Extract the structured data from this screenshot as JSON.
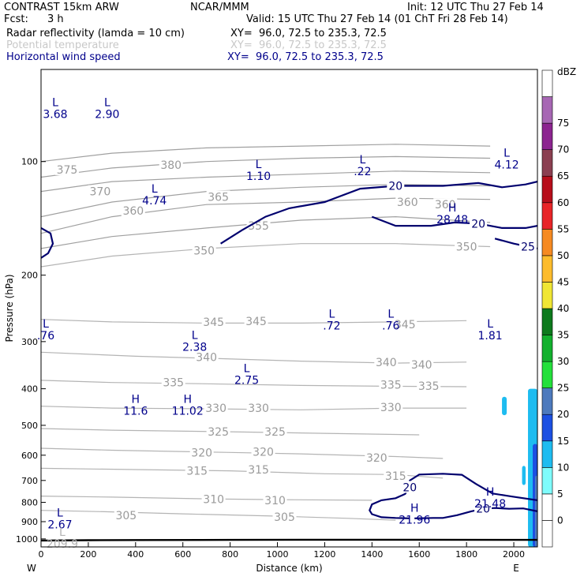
{
  "header": {
    "model": "CONTRAST 15km ARW",
    "org": "NCAR/MMM",
    "init": "Init: 12 UTC Thu 27 Feb 14",
    "fcst_label": "Fcst:",
    "fcst_value": "3 h",
    "valid": "Valid: 15 UTC Thu 27 Feb 14 (01 ChT Fri 28 Feb 14)",
    "fields": [
      {
        "name": "Radar reflectivity (lamda = 10 cm)",
        "xy": "XY=  96.0, 72.5 to 235.3, 72.5"
      },
      {
        "name": "Potential temperature",
        "xy": "XY=  96.0, 72.5 to 235.3, 72.5"
      },
      {
        "name": "Horizontal wind speed",
        "xy": "XY=  96.0, 72.5 to 235.3, 72.5"
      }
    ]
  },
  "colors": {
    "theta": "#b4b4b4",
    "theta_dense": "#a0a0a0",
    "wind": "#00006e",
    "ground": "#000000",
    "text_blue": "#00008b"
  },
  "chart_data": {
    "type": "contour cross-section",
    "xlabel": "Distance (km)",
    "ylabel": "Pressure (hPa)",
    "xlim": [
      0,
      2100
    ],
    "ylim": [
      1050,
      57
    ],
    "y_scale": "log",
    "x_ticks": [
      0,
      200,
      400,
      600,
      800,
      1000,
      1200,
      1400,
      1600,
      1800,
      2000
    ],
    "y_ticks": [
      100,
      200,
      300,
      400,
      500,
      600,
      700,
      800,
      900,
      1000
    ],
    "x_end_labels": {
      "left": "W",
      "right": "E"
    },
    "colorbar": {
      "unit": "dBZ",
      "levels": [
        0,
        5,
        10,
        15,
        20,
        25,
        30,
        35,
        40,
        45,
        50,
        55,
        60,
        65,
        70,
        75
      ],
      "colors": [
        "#ffffff",
        "#ffffff",
        "#7ffcfc",
        "#1ebcf0",
        "#1c50e2",
        "#4d7abd",
        "#23e03b",
        "#13b12e",
        "#0d7a1d",
        "#f0e634",
        "#fdbc2c",
        "#f68a22",
        "#e82427",
        "#b70e1b",
        "#8b3f51",
        "#8c2490",
        "#a767b4",
        "#ffffff"
      ]
    },
    "theta_lines": [
      {
        "label": "305",
        "points": [
          [
            0,
            840
          ],
          [
            300,
            848
          ],
          [
            600,
            858
          ],
          [
            1000,
            870
          ],
          [
            1300,
            882
          ],
          [
            1500,
            892
          ]
        ],
        "labels_at": [
          [
            360,
            867
          ],
          [
            1030,
            875
          ]
        ]
      },
      {
        "label": "310",
        "points": [
          [
            0,
            770
          ],
          [
            300,
            775
          ],
          [
            700,
            783
          ],
          [
            1000,
            787
          ],
          [
            1400,
            790
          ]
        ],
        "labels_at": [
          [
            730,
            785
          ],
          [
            990,
            790
          ]
        ]
      },
      {
        "label": "315",
        "points": [
          [
            0,
            650
          ],
          [
            400,
            655
          ],
          [
            800,
            660
          ],
          [
            1200,
            672
          ],
          [
            1500,
            675
          ],
          [
            1700,
            690
          ]
        ],
        "labels_at": [
          [
            660,
            660
          ],
          [
            920,
            655
          ],
          [
            1500,
            680
          ]
        ]
      },
      {
        "label": "320",
        "points": [
          [
            0,
            575
          ],
          [
            300,
            582
          ],
          [
            800,
            590
          ],
          [
            1100,
            595
          ],
          [
            1500,
            605
          ],
          [
            1700,
            612
          ]
        ],
        "labels_at": [
          [
            680,
            590
          ],
          [
            940,
            588
          ],
          [
            1420,
            610
          ]
        ]
      },
      {
        "label": "325",
        "points": [
          [
            0,
            510
          ],
          [
            300,
            515
          ],
          [
            800,
            520
          ],
          [
            1200,
            525
          ],
          [
            1600,
            530
          ]
        ],
        "labels_at": [
          [
            750,
            520
          ],
          [
            990,
            520
          ]
        ]
      },
      {
        "label": "330",
        "points": [
          [
            0,
            445
          ],
          [
            300,
            450
          ],
          [
            700,
            452
          ],
          [
            1100,
            455
          ],
          [
            1500,
            450
          ],
          [
            1800,
            450
          ]
        ],
        "labels_at": [
          [
            740,
            450
          ],
          [
            920,
            450
          ],
          [
            1480,
            448
          ]
        ]
      },
      {
        "label": "335",
        "points": [
          [
            0,
            380
          ],
          [
            300,
            385
          ],
          [
            700,
            388
          ],
          [
            1100,
            392
          ],
          [
            1500,
            394
          ],
          [
            1800,
            395
          ]
        ],
        "labels_at": [
          [
            560,
            385
          ],
          [
            1480,
            390
          ],
          [
            1640,
            393
          ]
        ]
      },
      {
        "label": "340",
        "points": [
          [
            0,
            320
          ],
          [
            400,
            328
          ],
          [
            700,
            332
          ],
          [
            1100,
            338
          ],
          [
            1500,
            342
          ],
          [
            1800,
            340
          ]
        ],
        "labels_at": [
          [
            700,
            330
          ],
          [
            1460,
            340
          ],
          [
            1610,
            345
          ]
        ]
      },
      {
        "label": "345",
        "points": [
          [
            0,
            262
          ],
          [
            300,
            266
          ],
          [
            700,
            268
          ],
          [
            1100,
            268
          ],
          [
            1500,
            266
          ],
          [
            1800,
            264
          ]
        ],
        "labels_at": [
          [
            730,
            266
          ],
          [
            910,
            265
          ],
          [
            1540,
            270
          ]
        ]
      },
      {
        "label": "350",
        "points": [
          [
            0,
            190
          ],
          [
            300,
            178
          ],
          [
            700,
            170
          ],
          [
            1100,
            165
          ],
          [
            1500,
            165
          ],
          [
            1900,
            168
          ]
        ],
        "labels_at": [
          [
            690,
            172
          ],
          [
            1800,
            168
          ]
        ]
      },
      {
        "label": "355",
        "points": [
          [
            0,
            170
          ],
          [
            300,
            158
          ],
          [
            700,
            150
          ],
          [
            1100,
            143
          ],
          [
            1500,
            140
          ],
          [
            1900,
            145
          ]
        ],
        "labels_at": [
          [
            920,
            148
          ]
        ]
      },
      {
        "label": "360",
        "points": [
          [
            0,
            155
          ],
          [
            300,
            140
          ],
          [
            700,
            130
          ],
          [
            1100,
            128
          ],
          [
            1500,
            125
          ],
          [
            1900,
            126
          ]
        ],
        "labels_at": [
          [
            390,
            135
          ],
          [
            1550,
            128
          ],
          [
            1710,
            130
          ]
        ]
      },
      {
        "label": "365",
        "points": [
          [
            0,
            140
          ],
          [
            300,
            128
          ],
          [
            700,
            120
          ],
          [
            1100,
            117
          ],
          [
            1500,
            115
          ],
          [
            1900,
            116
          ]
        ],
        "labels_at": [
          [
            750,
            124
          ]
        ]
      },
      {
        "label": "370",
        "points": [
          [
            0,
            120
          ],
          [
            300,
            113
          ],
          [
            700,
            110
          ],
          [
            1100,
            108
          ],
          [
            1500,
            106
          ],
          [
            1900,
            107
          ]
        ],
        "labels_at": [
          [
            250,
            120
          ]
        ]
      },
      {
        "label": "375",
        "points": [
          [
            0,
            110
          ],
          [
            300,
            104
          ],
          [
            700,
            100
          ],
          [
            1100,
            98
          ],
          [
            1500,
            97
          ],
          [
            1900,
            98
          ]
        ],
        "labels_at": [
          [
            110,
            105
          ]
        ]
      },
      {
        "label": "380",
        "points": [
          [
            0,
            100
          ],
          [
            300,
            95
          ],
          [
            700,
            92
          ],
          [
            1100,
            91
          ],
          [
            1500,
            90
          ],
          [
            1900,
            91
          ]
        ],
        "labels_at": [
          [
            550,
            102
          ]
        ]
      }
    ],
    "wind_contours": [
      {
        "label": "20",
        "points": [
          [
            760,
            165
          ],
          [
            850,
            152
          ],
          [
            950,
            140
          ],
          [
            1050,
            133
          ],
          [
            1200,
            128
          ],
          [
            1350,
            118
          ],
          [
            1500,
            116
          ],
          [
            1700,
            116
          ],
          [
            1850,
            114
          ],
          [
            1950,
            117
          ],
          [
            2050,
            115
          ],
          [
            2100,
            113
          ]
        ]
      },
      {
        "label": "20",
        "points": [
          [
            1400,
            140
          ],
          [
            1500,
            148
          ],
          [
            1650,
            148
          ],
          [
            1750,
            145
          ],
          [
            1850,
            146
          ],
          [
            1950,
            150
          ],
          [
            2050,
            150
          ],
          [
            2100,
            148
          ]
        ]
      },
      {
        "label": "25",
        "points": [
          [
            1920,
            160
          ],
          [
            2000,
            165
          ],
          [
            2060,
            168
          ],
          [
            2100,
            170
          ]
        ]
      },
      {
        "label": "",
        "points": [
          [
            0,
            180
          ],
          [
            30,
            175
          ],
          [
            50,
            165
          ],
          [
            40,
            155
          ],
          [
            0,
            150
          ]
        ]
      },
      {
        "label": "20",
        "points": [
          [
            1560,
            882
          ],
          [
            1500,
            880
          ],
          [
            1440,
            876
          ],
          [
            1400,
            860
          ],
          [
            1390,
            840
          ],
          [
            1400,
            810
          ],
          [
            1440,
            790
          ],
          [
            1500,
            780
          ],
          [
            1540,
            760
          ],
          [
            1560,
            730
          ],
          [
            1560,
            700
          ],
          [
            1600,
            675
          ],
          [
            1700,
            672
          ],
          [
            1780,
            676
          ],
          [
            1840,
            715
          ],
          [
            1910,
            758
          ],
          [
            1990,
            772
          ],
          [
            2100,
            790
          ]
        ]
      },
      {
        "label": "20",
        "points": [
          [
            1580,
            882
          ],
          [
            1660,
            880
          ],
          [
            1700,
            880
          ],
          [
            1760,
            865
          ],
          [
            1820,
            845
          ],
          [
            1870,
            832
          ],
          [
            1920,
            828
          ],
          [
            1980,
            832
          ],
          [
            2040,
            830
          ],
          [
            2100,
            845
          ]
        ]
      }
    ],
    "ground": {
      "label": "",
      "points": [
        [
          0,
          1010
        ],
        [
          200,
          1008
        ],
        [
          400,
          1007
        ],
        [
          800,
          1006
        ],
        [
          1200,
          1005
        ],
        [
          1600,
          1005
        ],
        [
          2000,
          1006
        ],
        [
          2100,
          1006
        ]
      ]
    },
    "reflectivity_cells": [
      {
        "dbz": 10,
        "x": [
          1950,
          1970
        ],
        "p": [
          420,
          470
        ]
      },
      {
        "dbz": 10,
        "x": [
          2035,
          2050
        ],
        "p": [
          640,
          720
        ]
      },
      {
        "dbz": 10,
        "x": [
          2060,
          2100
        ],
        "p": [
          400,
          1050
        ]
      },
      {
        "dbz": 15,
        "x": [
          2080,
          2100
        ],
        "p": [
          560,
          1050
        ]
      },
      {
        "dbz": 20,
        "x": [
          2090,
          2100
        ],
        "p": [
          680,
          1050
        ]
      }
    ],
    "extrema": [
      {
        "type": "L",
        "value": "3.68",
        "x": 60,
        "p": 72
      },
      {
        "type": "L",
        "value": "2.90",
        "x": 280,
        "p": 72
      },
      {
        "type": "L",
        "value": "4.74",
        "x": 480,
        "p": 122
      },
      {
        "type": "L",
        "value": "1.10",
        "x": 920,
        "p": 105
      },
      {
        "type": "L",
        "value": ".22",
        "x": 1360,
        "p": 102
      },
      {
        "type": "L",
        "value": "4.12",
        "x": 1970,
        "p": 98
      },
      {
        "type": "H",
        "value": "28.48",
        "x": 1740,
        "p": 137
      },
      {
        "type": "L",
        "value": ".76",
        "x": 20,
        "p": 278
      },
      {
        "type": "L",
        "value": ".72",
        "x": 1230,
        "p": 262
      },
      {
        "type": "L",
        "value": ".76",
        "x": 1480,
        "p": 262
      },
      {
        "type": "L",
        "value": "1.81",
        "x": 1900,
        "p": 278
      },
      {
        "type": "L",
        "value": "2.38",
        "x": 650,
        "p": 298
      },
      {
        "type": "L",
        "value": "2.75",
        "x": 870,
        "p": 365
      },
      {
        "type": "H",
        "value": "11.6",
        "x": 400,
        "p": 440
      },
      {
        "type": "H",
        "value": "11.02",
        "x": 620,
        "p": 440
      },
      {
        "type": "H",
        "value": "21.48",
        "x": 1900,
        "p": 775
      },
      {
        "type": "H",
        "value": "21.96",
        "x": 1580,
        "p": 855
      },
      {
        "type": "L",
        "value": "2.67",
        "x": 80,
        "p": 880
      },
      {
        "type": "L",
        "value": "209.9",
        "x": 90,
        "p": 990
      }
    ]
  }
}
